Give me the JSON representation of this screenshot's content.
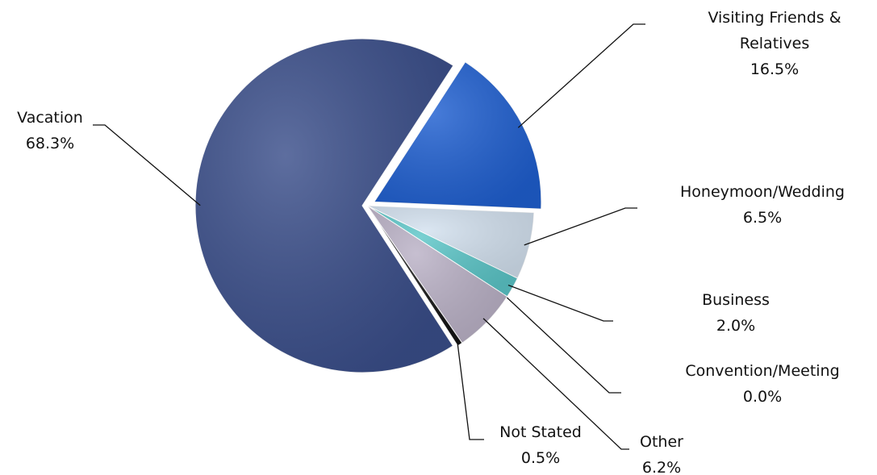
{
  "chart_data": {
    "type": "pie",
    "categories": [
      "Visiting Friends & Relatives",
      "Honeymoon/Wedding",
      "Business",
      "Convention/Meeting",
      "Other",
      "Not Stated",
      "Vacation"
    ],
    "values": [
      16.5,
      6.5,
      2.0,
      0.0,
      6.2,
      0.5,
      68.3
    ],
    "value_labels": [
      "16.5%",
      "6.5%",
      "2.0%",
      "0.0%",
      "6.2%",
      "0.5%",
      "68.3%"
    ],
    "colors": [
      "#1f5fd0",
      "#d3e1ef",
      "#5cc6c8",
      "#55588a",
      "#bab1c6",
      "#151515",
      "#3a4e8a"
    ]
  }
}
